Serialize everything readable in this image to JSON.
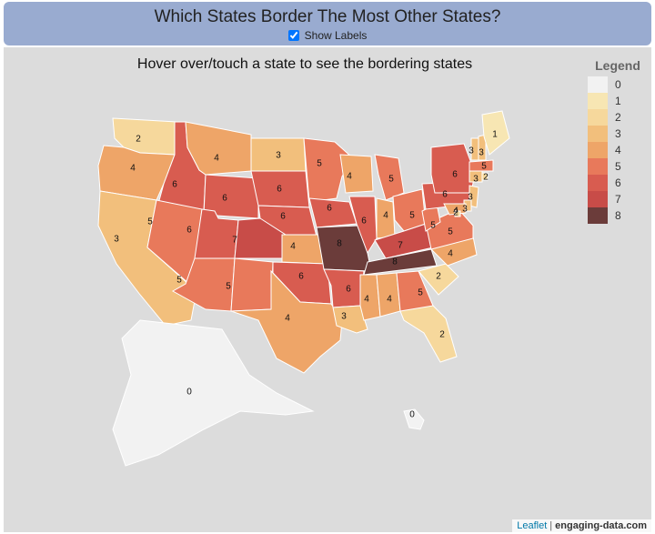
{
  "header": {
    "title": "Which States Border The Most Other States?",
    "show_labels_label": "Show Labels",
    "show_labels_checked": true
  },
  "map": {
    "subtitle": "Hover over/touch a state to see the bordering states",
    "legend": {
      "title": "Legend",
      "items": [
        {
          "value": "0",
          "color": "#f2f2f2"
        },
        {
          "value": "1",
          "color": "#f7e6b3"
        },
        {
          "value": "2",
          "color": "#f6d89c"
        },
        {
          "value": "3",
          "color": "#f2bf7c"
        },
        {
          "value": "4",
          "color": "#eea568"
        },
        {
          "value": "5",
          "color": "#e8795b"
        },
        {
          "value": "6",
          "color": "#d85c50"
        },
        {
          "value": "7",
          "color": "#c84c48"
        },
        {
          "value": "8",
          "color": "#6b3c3a"
        }
      ]
    },
    "states": [
      {
        "name": "WA",
        "count": 2
      },
      {
        "name": "OR",
        "count": 4
      },
      {
        "name": "CA",
        "count": 3
      },
      {
        "name": "ID",
        "count": 6
      },
      {
        "name": "NV",
        "count": 5
      },
      {
        "name": "MT",
        "count": 4
      },
      {
        "name": "WY",
        "count": 6
      },
      {
        "name": "UT",
        "count": 6
      },
      {
        "name": "AZ",
        "count": 5
      },
      {
        "name": "CO",
        "count": 7
      },
      {
        "name": "NM",
        "count": 5
      },
      {
        "name": "ND",
        "count": 3
      },
      {
        "name": "SD",
        "count": 6
      },
      {
        "name": "NE",
        "count": 6
      },
      {
        "name": "KS",
        "count": 4
      },
      {
        "name": "OK",
        "count": 6
      },
      {
        "name": "TX",
        "count": 4
      },
      {
        "name": "MN",
        "count": 5
      },
      {
        "name": "IA",
        "count": 6
      },
      {
        "name": "MO",
        "count": 8
      },
      {
        "name": "AR",
        "count": 6
      },
      {
        "name": "LA",
        "count": 3
      },
      {
        "name": "WI",
        "count": 4
      },
      {
        "name": "IL",
        "count": 6
      },
      {
        "name": "MI",
        "count": 5
      },
      {
        "name": "IN",
        "count": 4
      },
      {
        "name": "OH",
        "count": 5
      },
      {
        "name": "KY",
        "count": 7
      },
      {
        "name": "TN",
        "count": 8
      },
      {
        "name": "MS",
        "count": 4
      },
      {
        "name": "AL",
        "count": 4
      },
      {
        "name": "GA",
        "count": 5
      },
      {
        "name": "FL",
        "count": 2
      },
      {
        "name": "SC",
        "count": 2
      },
      {
        "name": "NC",
        "count": 4
      },
      {
        "name": "VA",
        "count": 5
      },
      {
        "name": "WV",
        "count": 5
      },
      {
        "name": "PA",
        "count": 6
      },
      {
        "name": "NY",
        "count": 6
      },
      {
        "name": "NJ",
        "count": 3
      },
      {
        "name": "DE",
        "count": 3
      },
      {
        "name": "MD",
        "count": 4
      },
      {
        "name": "DC",
        "count": 2
      },
      {
        "name": "CT",
        "count": 3
      },
      {
        "name": "RI",
        "count": 2
      },
      {
        "name": "MA",
        "count": 5
      },
      {
        "name": "VT",
        "count": 3
      },
      {
        "name": "NH",
        "count": 3
      },
      {
        "name": "ME",
        "count": 1
      },
      {
        "name": "AK",
        "count": 0
      },
      {
        "name": "HI",
        "count": 0
      }
    ],
    "attribution": {
      "leaflet": "Leaflet",
      "source": "engaging-data.com"
    }
  }
}
